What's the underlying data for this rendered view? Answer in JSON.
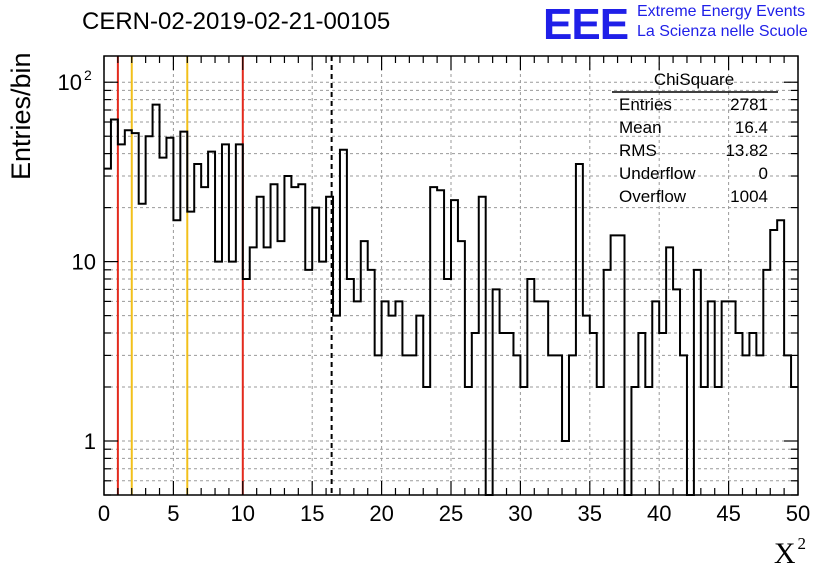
{
  "header": {
    "run_title": "CERN-02-2019-02-21-00105",
    "logo_text": "EEE",
    "logo_line1": "Extreme Energy Events",
    "logo_line2": "La Scienza nelle Scuole"
  },
  "stats": {
    "title": "ChiSquare",
    "rows": [
      {
        "label": "Entries",
        "value": "2781"
      },
      {
        "label": "Mean",
        "value": "16.4"
      },
      {
        "label": "RMS",
        "value": "13.82"
      },
      {
        "label": "Underflow",
        "value": "0"
      },
      {
        "label": "Overflow",
        "value": "1004"
      }
    ]
  },
  "chart_data": {
    "type": "histogram",
    "title": "CERN-02-2019-02-21-00105",
    "xlabel": "χ²",
    "ylabel": "Entries/bin",
    "xlim": [
      0,
      50
    ],
    "ylim": [
      0.5,
      140
    ],
    "log_y": true,
    "grid": true,
    "bin_width": 0.5,
    "x_ticks": [
      "0",
      "5",
      "10",
      "15",
      "20",
      "25",
      "30",
      "35",
      "40",
      "45",
      "50"
    ],
    "y_ticks": [
      {
        "value": 1,
        "label": "1"
      },
      {
        "value": 10,
        "label": "10"
      },
      {
        "value": 100,
        "label": "10",
        "exp": "2"
      }
    ],
    "values": [
      33,
      62,
      45,
      54,
      52,
      21,
      50,
      75,
      38,
      49,
      17,
      53,
      19,
      35,
      26,
      41,
      10,
      45,
      10,
      45,
      8,
      12,
      23,
      12,
      27,
      13,
      30,
      26,
      27,
      9,
      20,
      10,
      23,
      5,
      42,
      8,
      6,
      13,
      9,
      3,
      6,
      5,
      6,
      3,
      3,
      5,
      2,
      26,
      25,
      8,
      22,
      13,
      2,
      4,
      23,
      0,
      7,
      4,
      4,
      3,
      2,
      8,
      6,
      6,
      3,
      3,
      1,
      3,
      35,
      5,
      4,
      2,
      9,
      14,
      14,
      0,
      2,
      4,
      2,
      6,
      4,
      12,
      7,
      3,
      0,
      9,
      2,
      6,
      2,
      6,
      6,
      4,
      3,
      4,
      3,
      9,
      15,
      17,
      3,
      2
    ],
    "reference_lines": [
      {
        "x": 1.0,
        "color": "#e32a1d",
        "style": "solid"
      },
      {
        "x": 2.0,
        "color": "#f2c01a",
        "style": "solid"
      },
      {
        "x": 6.0,
        "color": "#f2c01a",
        "style": "solid"
      },
      {
        "x": 10.0,
        "color": "#e32a1d",
        "style": "solid"
      },
      {
        "x": 16.4,
        "color": "#000000",
        "style": "dashed"
      }
    ]
  },
  "colors": {
    "logo": "#1f1fe8",
    "hist_line": "#000000",
    "grid": "#9a9a9a"
  }
}
